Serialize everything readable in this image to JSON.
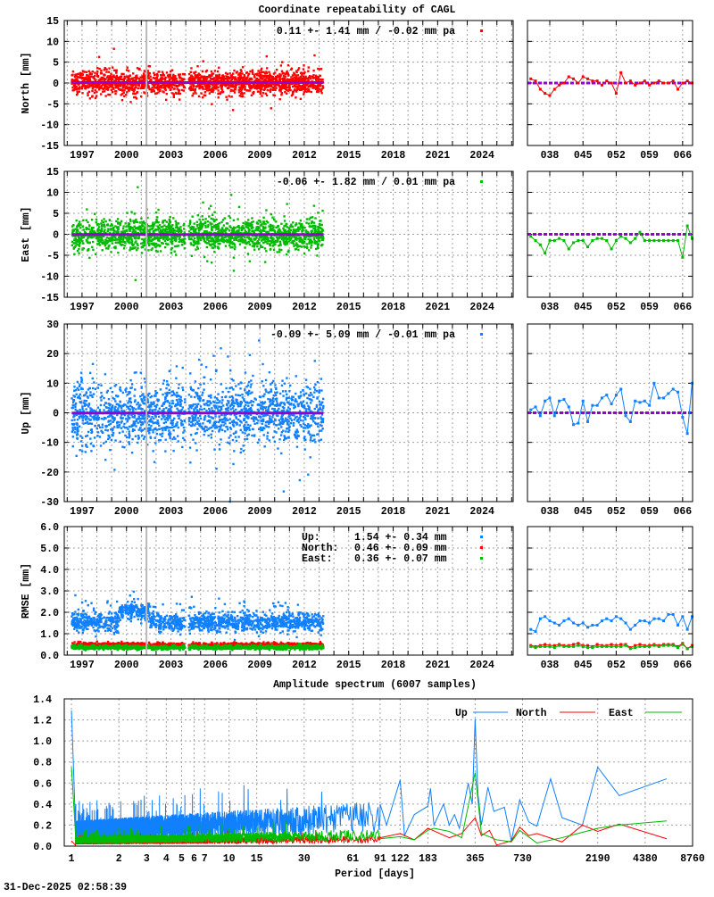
{
  "title": "Coordinate repeatability of CAGL",
  "timestamp": "31-Dec-2025 02:58:39",
  "colors": {
    "north": "#ff0000",
    "east": "#00bb00",
    "up": "#1080ff",
    "mean_line": "#9400d3",
    "marker_line": "#b8b8b8",
    "grid": "#a0a0a0"
  },
  "chart_data": [
    {
      "id": "north",
      "type": "scatter",
      "ylabel": "North [mm]",
      "legend": "0.11 +- 1.41 mm / -0.02 mm pa",
      "color": "#ff0000",
      "mean_mm": 0.11,
      "std_mm": 1.41,
      "trend_mm_pa": -0.02,
      "xlim": [
        1995.8,
        2026.1
      ],
      "ylim": [
        -15,
        15
      ],
      "xticks": [
        "1997",
        "2000",
        "2003",
        "2006",
        "2009",
        "2012",
        "2015",
        "2018",
        "2021",
        "2024"
      ],
      "yticks": [
        "15",
        "10",
        "5",
        "0",
        "-5",
        "-10",
        "-15"
      ],
      "data_span_years": [
        1996.3,
        2013.3
      ],
      "data_gap_years": [
        2003.95,
        2004.2
      ],
      "marker_year": 2001.35,
      "grid": true
    },
    {
      "id": "east",
      "type": "scatter",
      "ylabel": "East [mm]",
      "legend": "-0.06 +- 1.82 mm /  0.01 mm pa",
      "color": "#00bb00",
      "mean_mm": -0.06,
      "std_mm": 1.82,
      "trend_mm_pa": 0.01,
      "xlim": [
        1995.8,
        2026.1
      ],
      "ylim": [
        -15,
        15
      ],
      "xticks": [
        "1997",
        "2000",
        "2003",
        "2006",
        "2009",
        "2012",
        "2015",
        "2018",
        "2021",
        "2024"
      ],
      "yticks": [
        "15",
        "10",
        "5",
        "0",
        "-5",
        "-10",
        "-15"
      ],
      "data_span_years": [
        1996.3,
        2013.3
      ],
      "data_gap_years": [
        2003.95,
        2004.2
      ],
      "marker_year": 2001.35,
      "grid": true
    },
    {
      "id": "up",
      "type": "scatter",
      "ylabel": "Up [mm]",
      "legend": "-0.09 +- 5.09 mm / -0.01 mm pa",
      "color": "#1080ff",
      "mean_mm": -0.09,
      "std_mm": 5.09,
      "trend_mm_pa": -0.01,
      "xlim": [
        1995.8,
        2026.1
      ],
      "ylim": [
        -30,
        30
      ],
      "xticks": [
        "1997",
        "2000",
        "2003",
        "2006",
        "2009",
        "2012",
        "2015",
        "2018",
        "2021",
        "2024"
      ],
      "yticks": [
        "30",
        "20",
        "10",
        "0",
        "-10",
        "-20",
        "-30"
      ],
      "data_span_years": [
        1996.3,
        2013.3
      ],
      "data_gap_years": [
        2003.95,
        2004.2
      ],
      "marker_year": 2001.35,
      "grid": true
    },
    {
      "id": "rmse",
      "type": "scatter",
      "ylabel": "RMSE [mm]",
      "xlim": [
        1995.8,
        2026.1
      ],
      "ylim": [
        0,
        6
      ],
      "xticks": [
        "1997",
        "2000",
        "2003",
        "2006",
        "2009",
        "2012",
        "2015",
        "2018",
        "2021",
        "2024"
      ],
      "yticks": [
        "6.0",
        "5.0",
        "4.0",
        "3.0",
        "2.0",
        "1.0",
        "0.0"
      ],
      "data_span_years": [
        1996.3,
        2013.3
      ],
      "data_gap_years": [
        2003.95,
        2004.2
      ],
      "marker_year": 2001.35,
      "legend": [
        {
          "name": "Up:",
          "value": "1.54 +- 0.34 mm",
          "color": "#1080ff",
          "mean": 1.54,
          "std": 0.34
        },
        {
          "name": "North:",
          "value": "0.46 +- 0.09 mm",
          "color": "#ff0000",
          "mean": 0.46,
          "std": 0.09
        },
        {
          "name": "East:",
          "value": "0.36 +- 0.07 mm",
          "color": "#00bb00",
          "mean": 0.36,
          "std": 0.07
        }
      ],
      "grid": true
    },
    {
      "id": "north-recent",
      "type": "line",
      "xlim": [
        33.3,
        68.1
      ],
      "ylim": [
        -15,
        15
      ],
      "xticks": [
        "038",
        "045",
        "052",
        "059",
        "066"
      ],
      "x": [
        34,
        35,
        36,
        37,
        38,
        39,
        40,
        41,
        42,
        43,
        44,
        45,
        46,
        47,
        48,
        49,
        50,
        51,
        52,
        53,
        54,
        55,
        56,
        57,
        58,
        59,
        60,
        61,
        62,
        63,
        64,
        65,
        66,
        67,
        68
      ],
      "values": [
        1,
        0.5,
        -1.5,
        -2.5,
        -3,
        -1.5,
        -0.5,
        0,
        1.5,
        1,
        0,
        1.5,
        1,
        0.5,
        0.5,
        -0.5,
        0.5,
        0,
        -2.5,
        2.5,
        0,
        0.5,
        -0.5,
        0,
        0.5,
        -0.5,
        0,
        0.5,
        0,
        0,
        0.5,
        -1.5,
        0,
        0.5,
        0
      ],
      "color": "#ff0000"
    },
    {
      "id": "east-recent",
      "type": "line",
      "xlim": [
        33.3,
        68.1
      ],
      "ylim": [
        -15,
        15
      ],
      "xticks": [
        "038",
        "045",
        "052",
        "059",
        "066"
      ],
      "x": [
        34,
        35,
        36,
        37,
        38,
        39,
        40,
        41,
        42,
        43,
        44,
        45,
        46,
        47,
        48,
        49,
        50,
        51,
        52,
        53,
        54,
        55,
        56,
        57,
        58,
        59,
        60,
        61,
        62,
        63,
        64,
        65,
        66,
        67,
        68
      ],
      "values": [
        -0.5,
        -1.5,
        -2.5,
        -4.5,
        -1.5,
        -1.5,
        -1,
        -1.5,
        -3.5,
        -2,
        -1.5,
        -1.5,
        -3,
        -1.5,
        -1,
        -1,
        -1.5,
        -3.5,
        -1.5,
        -0.5,
        -1,
        -2,
        -1,
        0.5,
        -1.5,
        -1.5,
        -1.5,
        -1.5,
        -1.5,
        -1.5,
        -1.5,
        -1.5,
        -5.5,
        2,
        -1
      ],
      "color": "#00bb00"
    },
    {
      "id": "up-recent",
      "type": "line",
      "xlim": [
        33.3,
        68.1
      ],
      "ylim": [
        -30,
        30
      ],
      "xticks": [
        "038",
        "045",
        "052",
        "059",
        "066"
      ],
      "x": [
        34,
        35,
        36,
        37,
        38,
        39,
        40,
        41,
        42,
        43,
        44,
        45,
        46,
        47,
        48,
        49,
        50,
        51,
        52,
        53,
        54,
        55,
        56,
        57,
        58,
        59,
        60,
        61,
        62,
        63,
        64,
        65,
        66,
        67,
        68
      ],
      "values": [
        1,
        2,
        -1,
        4,
        5,
        -1,
        4,
        4.5,
        2,
        -4,
        -3.5,
        4,
        -3,
        2.5,
        2.5,
        5,
        6,
        3,
        6,
        8,
        -1,
        -3,
        4,
        3.5,
        4,
        2.5,
        10,
        5,
        5,
        6.5,
        8,
        7,
        -1.5,
        -7,
        10
      ],
      "color": "#1080ff"
    },
    {
      "id": "rmse-recent",
      "type": "line",
      "xlim": [
        33.3,
        68.1
      ],
      "ylim": [
        0,
        6
      ],
      "xticks": [
        "038",
        "045",
        "052",
        "059",
        "066"
      ],
      "x": [
        34,
        35,
        36,
        37,
        38,
        39,
        40,
        41,
        42,
        43,
        44,
        45,
        46,
        47,
        48,
        49,
        50,
        51,
        52,
        53,
        54,
        55,
        56,
        57,
        58,
        59,
        60,
        61,
        62,
        63,
        64,
        65,
        66,
        67,
        68
      ],
      "series": [
        {
          "color": "#1080ff",
          "values": [
            1.2,
            1.1,
            1.7,
            1.8,
            1.6,
            1.5,
            1.4,
            1.6,
            1.7,
            1.5,
            1.4,
            1.5,
            1.3,
            1.4,
            1.4,
            1.6,
            1.7,
            1.6,
            1.8,
            1.7,
            1.5,
            1.2,
            1.4,
            1.6,
            1.6,
            1.5,
            1.7,
            1.7,
            1.6,
            1.9,
            1.9,
            1.4,
            1.8,
            1.2,
            1.8
          ]
        },
        {
          "color": "#ff0000",
          "values": [
            0.45,
            0.4,
            0.45,
            0.5,
            0.45,
            0.45,
            0.5,
            0.45,
            0.45,
            0.5,
            0.55,
            0.45,
            0.45,
            0.4,
            0.5,
            0.45,
            0.45,
            0.5,
            0.45,
            0.5,
            0.5,
            0.35,
            0.45,
            0.5,
            0.45,
            0.45,
            0.5,
            0.45,
            0.5,
            0.5,
            0.5,
            0.4,
            0.55,
            0.3,
            0.45
          ]
        },
        {
          "color": "#00bb00",
          "values": [
            0.4,
            0.35,
            0.4,
            0.4,
            0.4,
            0.35,
            0.45,
            0.4,
            0.4,
            0.4,
            0.45,
            0.4,
            0.35,
            0.35,
            0.4,
            0.4,
            0.4,
            0.4,
            0.4,
            0.4,
            0.45,
            0.3,
            0.35,
            0.4,
            0.4,
            0.4,
            0.45,
            0.4,
            0.45,
            0.45,
            0.45,
            0.35,
            0.5,
            0.3,
            0.4
          ]
        }
      ]
    },
    {
      "id": "spectrum",
      "type": "line",
      "title": "Amplitude spectrum (6007 samples)",
      "xlabel": "Period [days]",
      "x_scale": "log",
      "xlim": [
        0.9,
        8760
      ],
      "ylim": [
        0,
        1.4
      ],
      "xticks": [
        1,
        2,
        3,
        4,
        5,
        6,
        7,
        10,
        15,
        30,
        61,
        91,
        122,
        183,
        365,
        730,
        2190,
        4380,
        8760
      ],
      "yticks": [
        "1.4",
        "1.2",
        "1.0",
        "0.8",
        "0.6",
        "0.4",
        "0.2",
        "0.0"
      ],
      "samples": 6007,
      "legend_position": "top-right",
      "grid": true,
      "series": [
        {
          "name": "Up",
          "color": "#1080ff",
          "short_period_level": 0.16,
          "peak_at_1day": 1.29,
          "period": [
            91,
            100,
            122,
            130,
            150,
            183,
            190,
            200,
            230,
            250,
            270,
            290,
            330,
            350,
            365,
            380,
            400,
            440,
            480,
            560,
            620,
            700,
            800,
            900,
            1100,
            1300,
            1750,
            2190,
            3000,
            6000
          ],
          "amplitude": [
            0.4,
            0.2,
            0.63,
            0.1,
            0.3,
            0.38,
            0.55,
            0.2,
            0.4,
            0.2,
            0.3,
            0.17,
            0.6,
            0.4,
            1.21,
            0.5,
            0.2,
            0.56,
            0.33,
            0.37,
            0.05,
            0.44,
            0.23,
            0.19,
            0.64,
            0.27,
            0.2,
            0.75,
            0.48,
            0.64
          ]
        },
        {
          "name": "North",
          "color": "#ff0000",
          "short_period_level": 0.04,
          "peak_at_1day": 0.05,
          "period": [
            91,
            122,
            150,
            183,
            250,
            300,
            365,
            400,
            450,
            500,
            620,
            700,
            800,
            900,
            1300,
            1750,
            2190,
            3000,
            6000
          ],
          "amplitude": [
            0.08,
            0.12,
            0.06,
            0.17,
            0.08,
            0.12,
            0.27,
            0.1,
            0.15,
            0.01,
            0.05,
            0.18,
            0.1,
            0.12,
            0.04,
            0.2,
            0.14,
            0.21,
            0.07
          ]
        },
        {
          "name": "East",
          "color": "#00bb00",
          "short_period_level": 0.06,
          "peak_at_1day": 0.75,
          "period": [
            91,
            122,
            150,
            183,
            200,
            250,
            300,
            365,
            400,
            500,
            620,
            700,
            900,
            1300,
            2190,
            3000,
            6000
          ],
          "amplitude": [
            0.07,
            0.09,
            0.06,
            0.15,
            0.17,
            0.14,
            0.08,
            0.7,
            0.12,
            0.06,
            0.04,
            0.15,
            0.03,
            0.08,
            0.17,
            0.2,
            0.24
          ]
        }
      ]
    }
  ]
}
